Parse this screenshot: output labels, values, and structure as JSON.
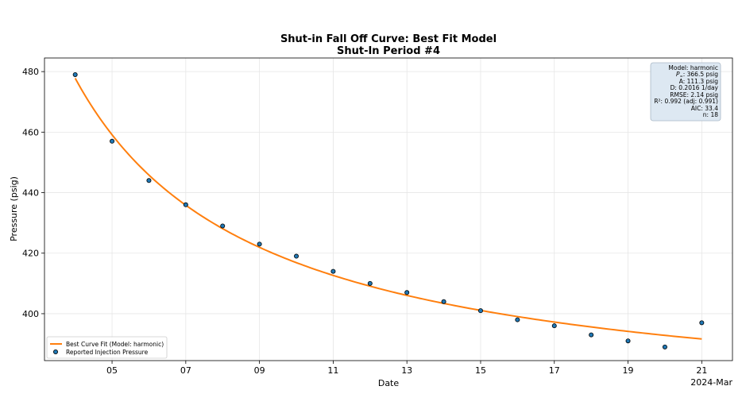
{
  "chart_data": {
    "type": "scatter",
    "title": "Shut-in Fall Off Curve: Best Fit Model",
    "subtitle": "Shut-In Period #4",
    "xlabel": "Date",
    "ylabel": "Pressure (psig)",
    "x_offset_label": "2024-Mar",
    "xlim": [
      "2024-03-03T04:00",
      "2024-03-21T20:00"
    ],
    "ylim": [
      384.5,
      484.5
    ],
    "x_ticks": [
      {
        "date": "2024-03-05",
        "label": "05"
      },
      {
        "date": "2024-03-07",
        "label": "07"
      },
      {
        "date": "2024-03-09",
        "label": "09"
      },
      {
        "date": "2024-03-11",
        "label": "11"
      },
      {
        "date": "2024-03-13",
        "label": "13"
      },
      {
        "date": "2024-03-15",
        "label": "15"
      },
      {
        "date": "2024-03-17",
        "label": "17"
      },
      {
        "date": "2024-03-19",
        "label": "19"
      },
      {
        "date": "2024-03-21",
        "label": "21"
      }
    ],
    "y_ticks": [
      400,
      420,
      440,
      460,
      480
    ],
    "grid": true,
    "legend_placement": "lower-left",
    "series": [
      {
        "name": "Best Curve Fit (Model: harmonic)",
        "kind": "line",
        "color": "#ff7f0e",
        "model": {
          "type": "harmonic",
          "p_inf": 366.5,
          "A": 111.3,
          "D": 0.2016,
          "start_date": "2024-03-04"
        },
        "x_range": [
          "2024-03-04",
          "2024-03-21"
        ]
      },
      {
        "name": "Reported Injection Pressure",
        "kind": "scatter",
        "color": "#1f77b4",
        "points": [
          {
            "x": "2024-03-04",
            "y": 479
          },
          {
            "x": "2024-03-05",
            "y": 457
          },
          {
            "x": "2024-03-06",
            "y": 444
          },
          {
            "x": "2024-03-07",
            "y": 436
          },
          {
            "x": "2024-03-08",
            "y": 429
          },
          {
            "x": "2024-03-09",
            "y": 423
          },
          {
            "x": "2024-03-10",
            "y": 419
          },
          {
            "x": "2024-03-11",
            "y": 414
          },
          {
            "x": "2024-03-12",
            "y": 410
          },
          {
            "x": "2024-03-13",
            "y": 407
          },
          {
            "x": "2024-03-14",
            "y": 404
          },
          {
            "x": "2024-03-15",
            "y": 401
          },
          {
            "x": "2024-03-16",
            "y": 398
          },
          {
            "x": "2024-03-17",
            "y": 396
          },
          {
            "x": "2024-03-18",
            "y": 393
          },
          {
            "x": "2024-03-19",
            "y": 391
          },
          {
            "x": "2024-03-20",
            "y": 389
          },
          {
            "x": "2024-03-21",
            "y": 397
          }
        ]
      }
    ],
    "stats_box": {
      "model": "Model: harmonic",
      "pinf_value": ": 366.5 psig",
      "a": "A: 111.3 psig",
      "d": "D: 0.2016 1/day",
      "rmse": "RMSE: 2.14 psig",
      "r2": "R²: 0.992  (adj: 0.991)",
      "aic": "AIC: 33.4",
      "n": "n: 18"
    }
  }
}
